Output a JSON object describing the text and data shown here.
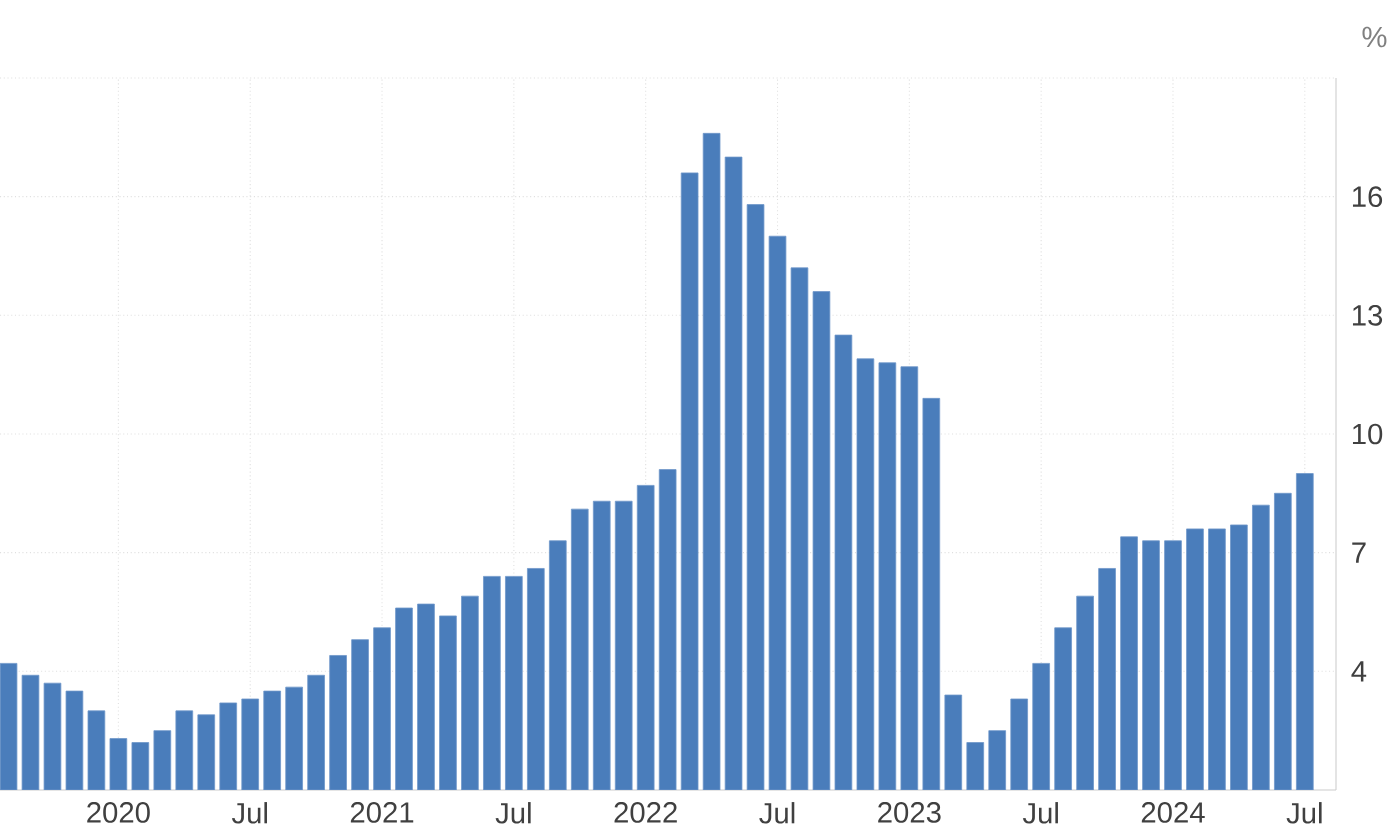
{
  "chart_data": {
    "type": "bar",
    "ylabel": "%",
    "color": "#4a7dbb",
    "grid": true,
    "x": [
      "2019-08",
      "2019-09",
      "2019-10",
      "2019-11",
      "2019-12",
      "2020-01",
      "2020-02",
      "2020-03",
      "2020-04",
      "2020-05",
      "2020-06",
      "2020-07",
      "2020-08",
      "2020-09",
      "2020-10",
      "2020-11",
      "2020-12",
      "2021-01",
      "2021-02",
      "2021-03",
      "2021-04",
      "2021-05",
      "2021-06",
      "2021-07",
      "2021-08",
      "2021-09",
      "2021-10",
      "2021-11",
      "2021-12",
      "2022-01",
      "2022-02",
      "2022-03",
      "2022-04",
      "2022-05",
      "2022-06",
      "2022-07",
      "2022-08",
      "2022-09",
      "2022-10",
      "2022-11",
      "2022-12",
      "2023-01",
      "2023-02",
      "2023-03",
      "2023-04",
      "2023-05",
      "2023-06",
      "2023-07",
      "2023-08",
      "2023-09",
      "2023-10",
      "2023-11",
      "2023-12",
      "2024-01",
      "2024-02",
      "2024-03",
      "2024-04",
      "2024-05",
      "2024-06",
      "2024-07"
    ],
    "values": [
      4.2,
      3.9,
      3.7,
      3.5,
      3.0,
      2.3,
      2.2,
      2.5,
      3.0,
      2.9,
      3.2,
      3.3,
      3.5,
      3.6,
      3.9,
      4.4,
      4.8,
      5.1,
      5.6,
      5.7,
      5.4,
      5.9,
      6.4,
      6.4,
      6.6,
      7.3,
      8.1,
      8.3,
      8.3,
      8.7,
      9.1,
      16.6,
      17.6,
      17.0,
      15.8,
      15.0,
      14.2,
      13.6,
      12.5,
      11.9,
      11.8,
      11.7,
      10.9,
      3.4,
      2.2,
      2.5,
      3.3,
      4.2,
      5.1,
      5.9,
      6.6,
      7.4,
      7.3,
      7.3,
      7.6,
      7.6,
      7.7,
      8.2,
      8.5,
      9.0
    ],
    "xlim": [
      "2019-07-20",
      "2024-08-14"
    ],
    "xticks": [
      {
        "value": "2020-01",
        "label": "2020"
      },
      {
        "value": "2020-07",
        "label": "Jul"
      },
      {
        "value": "2021-01",
        "label": "2021"
      },
      {
        "value": "2021-07",
        "label": "Jul"
      },
      {
        "value": "2022-01",
        "label": "2022"
      },
      {
        "value": "2022-07",
        "label": "Jul"
      },
      {
        "value": "2023-01",
        "label": "2023"
      },
      {
        "value": "2023-07",
        "label": "Jul"
      },
      {
        "value": "2024-01",
        "label": "2024"
      },
      {
        "value": "2024-07",
        "label": "Jul"
      }
    ],
    "ylim": [
      1,
      19
    ],
    "yticks": [
      4,
      7,
      10,
      13,
      16,
      {
        "value": 19,
        "label": null
      }
    ]
  }
}
